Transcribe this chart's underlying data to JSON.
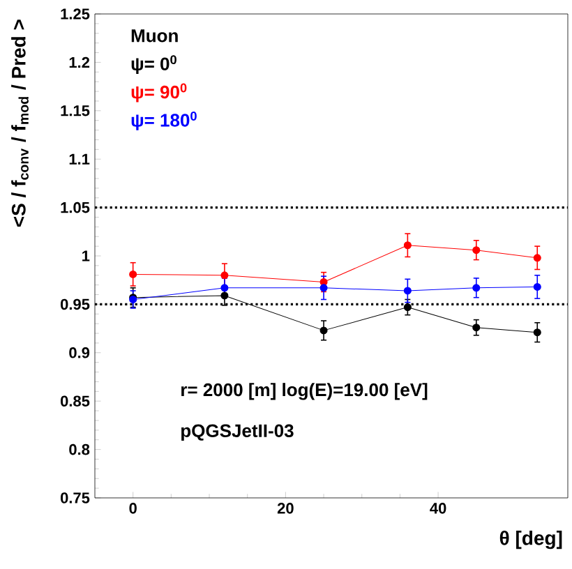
{
  "chart_data": {
    "type": "line",
    "xlabel": "θ [deg]",
    "ylabel": "<S / f$_{conv}$ / f$_{mod}$ / Pred >",
    "legend_title": "Muon",
    "x": [
      0,
      12,
      25,
      36,
      45,
      53
    ],
    "series": [
      {
        "name": "ψ=   0$^{0}$",
        "color": "#000000",
        "values": [
          0.957,
          0.959,
          0.923,
          0.947,
          0.926,
          0.921
        ],
        "errors": [
          0.01,
          0.01,
          0.01,
          0.008,
          0.008,
          0.01
        ]
      },
      {
        "name": "ψ=  90$^{0}$",
        "color": "#ff0000",
        "values": [
          0.981,
          0.98,
          0.973,
          1.011,
          1.006,
          0.998
        ],
        "errors": [
          0.012,
          0.012,
          0.01,
          0.012,
          0.01,
          0.012
        ]
      },
      {
        "name": "ψ=  180$^{0}$",
        "color": "#0000ff",
        "values": [
          0.955,
          0.967,
          0.967,
          0.964,
          0.967,
          0.968
        ],
        "errors": [
          0.009,
          0.01,
          0.012,
          0.012,
          0.01,
          0.012
        ]
      }
    ],
    "xlim": [
      -5,
      57
    ],
    "xticks": [
      0,
      20,
      40
    ],
    "ylim": [
      0.75,
      1.25
    ],
    "yticks": [
      0.75,
      0.8,
      0.85,
      0.9,
      0.95,
      1,
      1.05,
      1.1,
      1.15,
      1.2,
      1.25
    ],
    "ref_lines": [
      {
        "axis": "y",
        "value": 1.05,
        "line_style": "dotted"
      },
      {
        "axis": "y",
        "value": 0.95,
        "line_style": "dotted"
      }
    ],
    "annotations": [
      "r= 2000 [m] log(E)=19.00 [eV]",
      "pQGSJetII-03"
    ],
    "grid": false,
    "legend": "top left",
    "marker": "circle",
    "line_style": "solid"
  }
}
